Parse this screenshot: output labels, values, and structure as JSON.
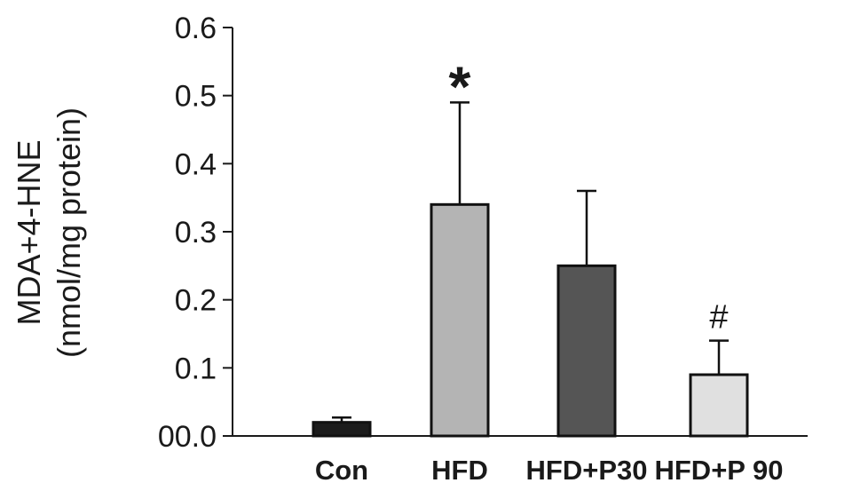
{
  "chart_data": {
    "type": "bar",
    "title": "",
    "xlabel": "",
    "ylabel_lines": [
      "MDA+4-HNE",
      "(nmol/mg protein)"
    ],
    "categories": [
      "Con",
      "HFD",
      "HFD+P30",
      "HFD+P 90"
    ],
    "values": [
      0.02,
      0.34,
      0.25,
      0.09
    ],
    "error_plus": [
      0.007,
      0.15,
      0.11,
      0.05
    ],
    "bar_colors": [
      "#1c1c1c",
      "#b4b4b4",
      "#555555",
      "#e0e0e0"
    ],
    "annotations": [
      "",
      "*",
      "",
      "#"
    ],
    "ylim": [
      0,
      0.6
    ],
    "yticks": [
      0,
      0.1,
      0.2,
      0.3,
      0.4,
      0.5,
      0.6
    ],
    "ytick_labels": [
      "00.0",
      "0.1",
      "0.2",
      "0.3",
      "0.4",
      "0.5",
      "0.6"
    ],
    "grid": false,
    "legend": "none"
  }
}
